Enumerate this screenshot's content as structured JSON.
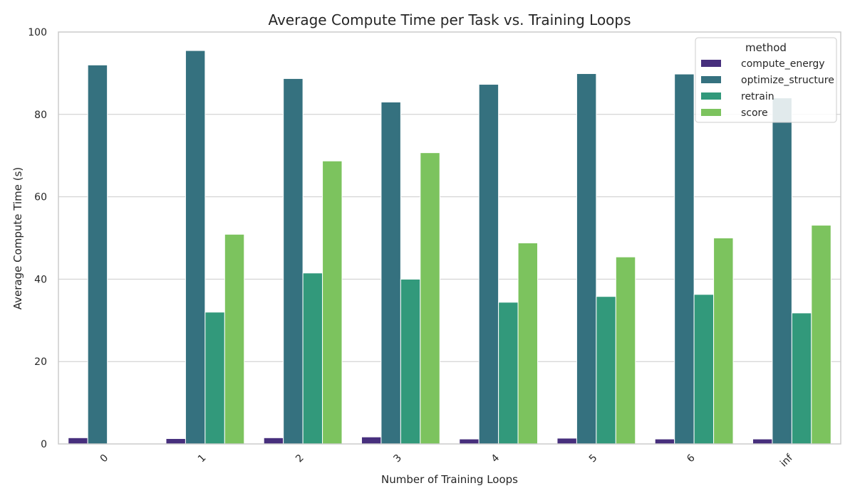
{
  "chart_data": {
    "type": "bar",
    "title": "Average Compute Time per Task vs. Training Loops",
    "xlabel": "Number of Training Loops",
    "ylabel": "Average Compute Time (s)",
    "ylim": [
      0,
      100
    ],
    "yticks": [
      0,
      20,
      40,
      60,
      80,
      100
    ],
    "grid": true,
    "legend_title": "method",
    "legend_position": "top-right",
    "categories": [
      "0",
      "1",
      "2",
      "3",
      "4",
      "5",
      "6",
      "inf"
    ],
    "series": [
      {
        "name": "compute_energy",
        "color": "#472f7d",
        "values": [
          1.5,
          1.3,
          1.5,
          1.7,
          1.2,
          1.4,
          1.2,
          1.2
        ]
      },
      {
        "name": "optimize_structure",
        "color": "#35717f",
        "values": [
          92.0,
          95.5,
          88.7,
          83.0,
          87.3,
          89.9,
          89.8,
          84.0
        ]
      },
      {
        "name": "retrain",
        "color": "#32997b",
        "values": [
          0,
          32.0,
          41.5,
          40.0,
          34.4,
          35.8,
          36.3,
          31.8
        ]
      },
      {
        "name": "score",
        "color": "#7cc35e",
        "values": [
          0,
          50.9,
          68.7,
          70.7,
          48.8,
          45.4,
          50.0,
          53.1
        ]
      }
    ]
  }
}
